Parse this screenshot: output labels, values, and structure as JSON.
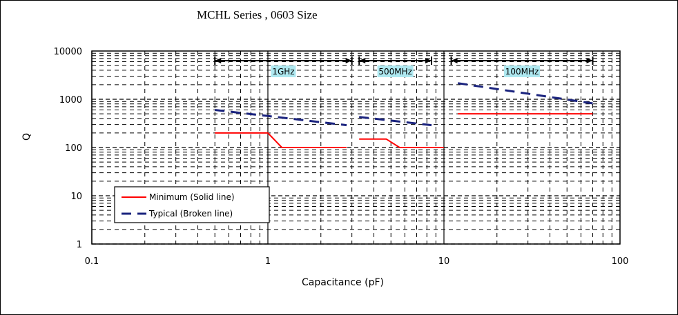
{
  "chart_data": {
    "type": "line",
    "title": "MCHL Series , 0603 Size",
    "xlabel": "Capacitance (pF)",
    "ylabel": "Q",
    "x_scale": "log",
    "y_scale": "log",
    "xlim": [
      0.1,
      100
    ],
    "ylim": [
      1,
      10000
    ],
    "x_ticks": [
      "0.1",
      "1",
      "10",
      "100"
    ],
    "y_ticks": [
      "1",
      "10",
      "100",
      "1000",
      "10000"
    ],
    "grid": true,
    "bands": [
      {
        "label": "1GHz",
        "range": [
          0.5,
          3.0
        ]
      },
      {
        "label": "500MHz",
        "range": [
          3.3,
          8.5
        ]
      },
      {
        "label": "100MHz",
        "range": [
          11,
          70
        ]
      }
    ],
    "legend": {
      "placement": "bottom-left",
      "entries": [
        {
          "label": "Minimum (Solid line)",
          "style": "solid",
          "color": "#ff0000"
        },
        {
          "label": "Typical (Broken line)",
          "style": "dashed",
          "color": "#1a237e"
        }
      ]
    },
    "series": [
      {
        "style": "solid",
        "color": "#ff0000",
        "x": [
          0.5,
          1.0,
          1.2,
          2.8
        ],
        "y": [
          200,
          200,
          100,
          100
        ]
      },
      {
        "style": "dashed",
        "color": "#1a237e",
        "x": [
          0.5,
          1.0,
          2.8
        ],
        "y": [
          600,
          450,
          290
        ]
      },
      {
        "style": "solid",
        "color": "#ff0000",
        "x": [
          3.3,
          4.7,
          5.6,
          10
        ],
        "y": [
          150,
          150,
          100,
          100
        ]
      },
      {
        "style": "dashed",
        "color": "#1a237e",
        "x": [
          3.3,
          8.5
        ],
        "y": [
          430,
          290
        ]
      },
      {
        "style": "solid",
        "color": "#ff0000",
        "x": [
          12,
          70
        ],
        "y": [
          500,
          500
        ]
      },
      {
        "style": "dashed",
        "color": "#1a237e",
        "x": [
          12,
          70
        ],
        "y": [
          2150,
          820
        ]
      }
    ]
  }
}
